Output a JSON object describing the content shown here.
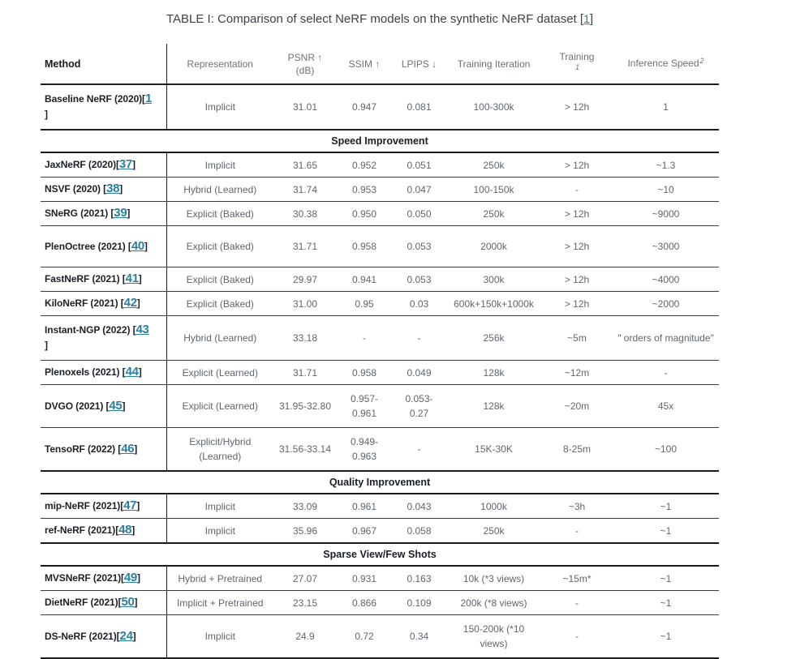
{
  "colors": {
    "link": "#2b7f9f",
    "caption_text": "#3c4247",
    "header_text": "#6d7276",
    "cell_text": "#60666b",
    "method_text": "#1d2125",
    "border": "#1a1c1e",
    "background": "#ffffff"
  },
  "title": {
    "pre": "TABLE I: Comparison of select NeRF models on the synthetic NeRF dataset [",
    "cite": "1",
    "post": "]"
  },
  "columns": [
    {
      "id": "method",
      "label": "Method"
    },
    {
      "id": "representation",
      "label": "Representation"
    },
    {
      "id": "psnr",
      "label": "PSNR ↑",
      "label2": "(dB)"
    },
    {
      "id": "ssim",
      "label": "SSIM ↑"
    },
    {
      "id": "lpips",
      "label": "LPIPS ↓"
    },
    {
      "id": "iteration",
      "label": "Training Iteration"
    },
    {
      "id": "time",
      "label": "Training",
      "label2": "Time",
      "sup": "1"
    },
    {
      "id": "speed",
      "label": "Inference Speed",
      "sup": "2"
    }
  ],
  "rows": [
    {
      "kind": "data",
      "tall": true,
      "wrap_bracket": true,
      "method_pre": "Baseline NeRF (2020)[",
      "cite": "1",
      "method_post": "]",
      "representation": "Implicit",
      "psnr": "31.01",
      "ssim": "0.947",
      "lpips": "0.081",
      "iteration": "100-300k",
      "time": "> 12h",
      "speed": "1"
    },
    {
      "kind": "section",
      "label": "Speed Improvement"
    },
    {
      "kind": "data",
      "method_pre": "JaxNeRF (2020)[",
      "cite": "37",
      "method_post": "]",
      "representation": "Implicit",
      "psnr": "31.65",
      "ssim": "0.952",
      "lpips": "0.051",
      "iteration": "250k",
      "time": "> 12h",
      "speed": "~1.3"
    },
    {
      "kind": "data",
      "method_pre": "NSVF (2020) [",
      "cite": "38",
      "method_post": "]",
      "representation": "Hybrid (Learned)",
      "psnr": "31.74",
      "ssim": "0.953",
      "lpips": "0.047",
      "iteration": "100-150k",
      "time": "-",
      "speed": "~10"
    },
    {
      "kind": "data",
      "method_pre": "SNeRG (2021) [",
      "cite": "39",
      "method_post": "]",
      "representation": "Explicit (Baked)",
      "psnr": "30.38",
      "ssim": "0.950",
      "lpips": "0.050",
      "iteration": "250k",
      "time": "> 12h",
      "speed": "~9000"
    },
    {
      "kind": "data",
      "tall": true,
      "method_pre": "PlenOctree (2021) [",
      "cite": "40",
      "method_post": "]",
      "representation": "Explicit (Baked)",
      "psnr": "31.71",
      "ssim": "0.958",
      "lpips": "0.053",
      "iteration": "2000k",
      "time": "> 12h",
      "speed": "~3000"
    },
    {
      "kind": "data",
      "method_pre": "FastNeRF (2021) [",
      "cite": "41",
      "method_post": "]",
      "representation": "Explicit (Baked)",
      "psnr": "29.97",
      "ssim": "0.941",
      "lpips": "0.053",
      "iteration": "300k",
      "time": "> 12h",
      "speed": "~4000"
    },
    {
      "kind": "data",
      "method_pre": "KiloNeRF (2021) [",
      "cite": "42",
      "method_post": "]",
      "representation": "Explicit (Baked)",
      "psnr": "31.00",
      "ssim": "0.95",
      "lpips": "0.03",
      "iteration": "600k+150k+1000k",
      "time": "> 12h",
      "speed": "~2000"
    },
    {
      "kind": "data",
      "tall": true,
      "wrap_bracket": true,
      "method_pre": "Instant-NGP (2022) [",
      "cite": "43",
      "method_post": "]",
      "representation": "Hybrid (Learned)",
      "psnr": "33.18",
      "ssim": "-",
      "lpips": "-",
      "iteration": "256k",
      "time": "~5m",
      "speed": "\" orders of magnitude\""
    },
    {
      "kind": "data",
      "method_pre": "Plenoxels (2021) [",
      "cite": "44",
      "method_post": "]",
      "representation": "Explicit (Learned)",
      "psnr": "31.71",
      "ssim": "0.958",
      "lpips": "0.049",
      "iteration": "128k",
      "time": "~12m",
      "speed": "-"
    },
    {
      "kind": "data",
      "tall": true,
      "method_pre": "DVGO (2021) [",
      "cite": "45",
      "method_post": "]",
      "representation": "Explicit (Learned)",
      "psnr": "31.95-32.80",
      "ssim": "0.957-0.961",
      "lpips": "0.053-0.27",
      "iteration": "128k",
      "time": "~20m",
      "speed": "45x"
    },
    {
      "kind": "data",
      "tall": true,
      "method_pre": "TensoRF (2022) [",
      "cite": "46",
      "method_post": "]",
      "representation": "Explicit/Hybrid (Learned)",
      "psnr": "31.56-33.14",
      "ssim": "0.949-0.963",
      "lpips": "-",
      "iteration": "15K-30K",
      "time": "8-25m",
      "speed": "~100"
    },
    {
      "kind": "section",
      "label": "Quality Improvement"
    },
    {
      "kind": "data",
      "method_pre": "mip-NeRF (2021)[",
      "cite": "47",
      "method_post": "]",
      "representation": "Implicit",
      "psnr": "33.09",
      "ssim": "0.961",
      "lpips": "0.043",
      "iteration": "1000k",
      "time": "~3h",
      "speed": "~1"
    },
    {
      "kind": "data",
      "method_pre": "ref-NeRF (2021)[",
      "cite": "48",
      "method_post": "]",
      "representation": "Implicit",
      "psnr": "35.96",
      "ssim": "0.967",
      "lpips": "0.058",
      "iteration": "250k",
      "time": "-",
      "speed": "~1"
    },
    {
      "kind": "section",
      "label": "Sparse View/Few Shots"
    },
    {
      "kind": "data",
      "method_pre": "MVSNeRF (2021)[",
      "cite": "49",
      "method_post": "]",
      "representation": "Hybrid + Pretrained",
      "psnr": "27.07",
      "ssim": "0.931",
      "lpips": "0.163",
      "iteration": "10k (*3 views)",
      "time": "~15m*",
      "speed": "~1"
    },
    {
      "kind": "data",
      "method_pre": "DietNeRF (2021)[",
      "cite": "50",
      "method_post": "]",
      "representation": "Implicit + Pretrained",
      "psnr": "23.15",
      "ssim": "0.866",
      "lpips": "0.109",
      "iteration": "200k (*8 views)",
      "time": "-",
      "speed": "~1"
    },
    {
      "kind": "data",
      "tall": true,
      "method_pre": "DS-NeRF (2021)[",
      "cite": "24",
      "method_post": "]",
      "representation": "Implicit",
      "psnr": "24.9",
      "ssim": "0.72",
      "lpips": "0.34",
      "iteration": "150-200k (*10 views)",
      "time": "-",
      "speed": "~1"
    }
  ]
}
